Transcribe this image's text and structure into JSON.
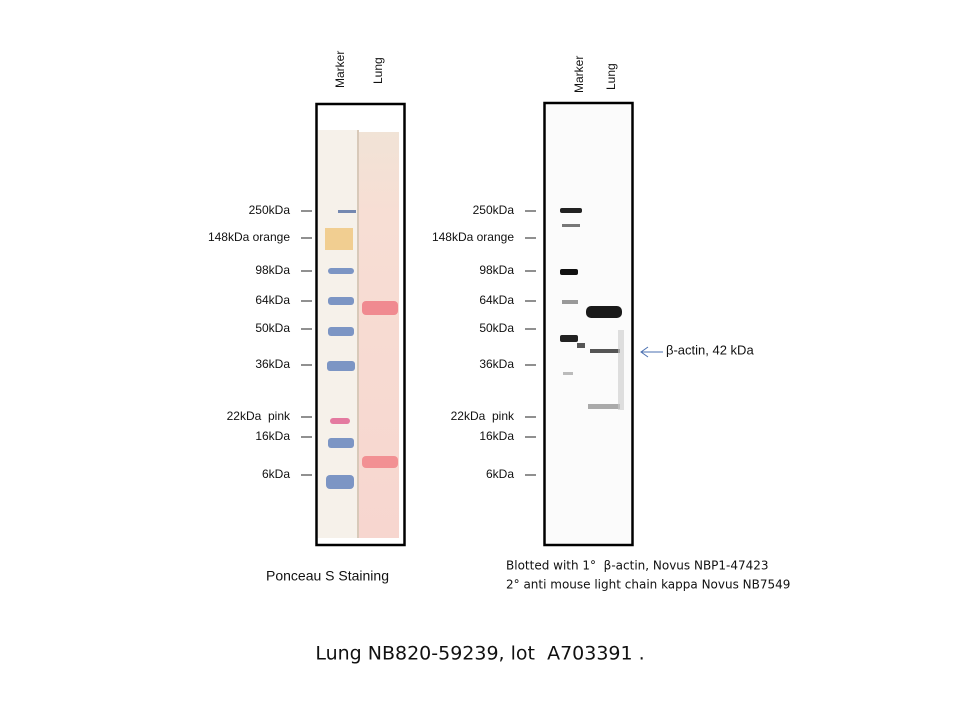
{
  "panels": [
    {
      "lanes": [
        "Marker",
        "Lung"
      ],
      "markers": [
        "250kDa",
        "148kDa orange",
        "98kDa",
        "64kDa",
        "50kDa",
        "36kDa",
        "22kDa  pink",
        "16kDa",
        "6kDa"
      ],
      "caption": [
        "Ponceau S Staining"
      ]
    },
    {
      "lanes": [
        "Marker",
        "Lung"
      ],
      "markers": [
        "250kDa",
        "148kDa orange",
        "98kDa",
        "64kDa",
        "50kDa",
        "36kDa",
        "22kDa  pink",
        "16kDa",
        "6kDa"
      ],
      "annotation": "β-actin, 42 kDa",
      "caption": [
        "Blotted with 1°  β-actin, Novus NBP1-47423",
        "2° anti mouse light chain kappa Novus NB7549"
      ]
    }
  ],
  "footer": "Lung NB820-59239, lot  A703391 ."
}
